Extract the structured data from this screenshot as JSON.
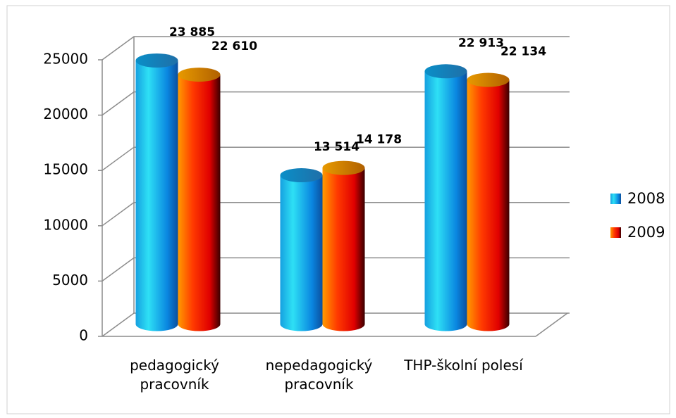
{
  "chart_data": {
    "type": "bar",
    "categories": [
      "pedagogický pracovník",
      "nepedagogický pracovník",
      "THP-školní polesí"
    ],
    "series": [
      {
        "name": "2008",
        "color": "#1aa6e6",
        "values": [
          23885,
          13514,
          22913
        ],
        "value_labels": [
          "23 885",
          "13 514",
          "22 913"
        ]
      },
      {
        "name": "2009",
        "color": "#ff5a00",
        "values": [
          22610,
          14178,
          22134
        ],
        "value_labels": [
          "22 610",
          "14 178",
          "22 134"
        ]
      }
    ],
    "ylim": [
      0,
      25000
    ],
    "yticks": [
      0,
      5000,
      10000,
      15000,
      20000,
      25000
    ],
    "grid": true,
    "legend": "right"
  }
}
